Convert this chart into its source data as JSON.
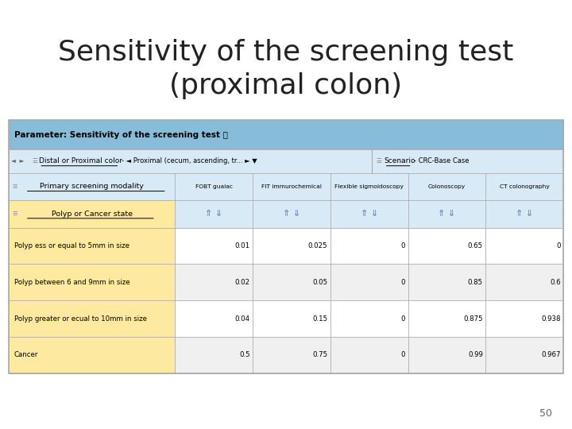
{
  "title": "Sensitivity of the screening test\n(proximal colon)",
  "title_fontsize": 26,
  "page_number": "50",
  "param_header": "Parameter: Sensitivity of the screening test ⓘ",
  "filter_label": "Distal or Proximal color",
  "filter_value": "Proximal (cecum, ascending, tr...",
  "scenario_label": "Scenario",
  "scenario_value": "CRC-Base Case",
  "col_header_row1_label": "Primary screening modality",
  "col_header_row2_label": "Polyp or Cancer state",
  "columns": [
    "FOBT guaiac",
    "FIT immurochemical",
    "Flexible sigmoidoscopy",
    "Colonoscopy",
    "CT colonography"
  ],
  "rows": [
    "Polyp ess or equal to 5mm in size",
    "Polyp between 6 and 9mm in size",
    "Polyp greater or ecual to 10mm in size",
    "Cancer"
  ],
  "data": [
    [
      0.01,
      0.025,
      0,
      0.65,
      0
    ],
    [
      0.02,
      0.05,
      0,
      0.85,
      0.6
    ],
    [
      0.04,
      0.15,
      0,
      0.875,
      0.938
    ],
    [
      0.5,
      0.75,
      0,
      0.99,
      0.967
    ]
  ],
  "bg_color": "#ffffff",
  "param_header_bg": "#87bdd8",
  "filter_bar_bg": "#d8eaf5",
  "col_header_bg": "#d8eaf5",
  "row_label_bg": "#fde9a0",
  "row_data_bg": "#ffffff",
  "row_alt_bg": "#f0f0f0",
  "sort_arrow_color": "#5577aa",
  "border_color": "#aaaaaa"
}
